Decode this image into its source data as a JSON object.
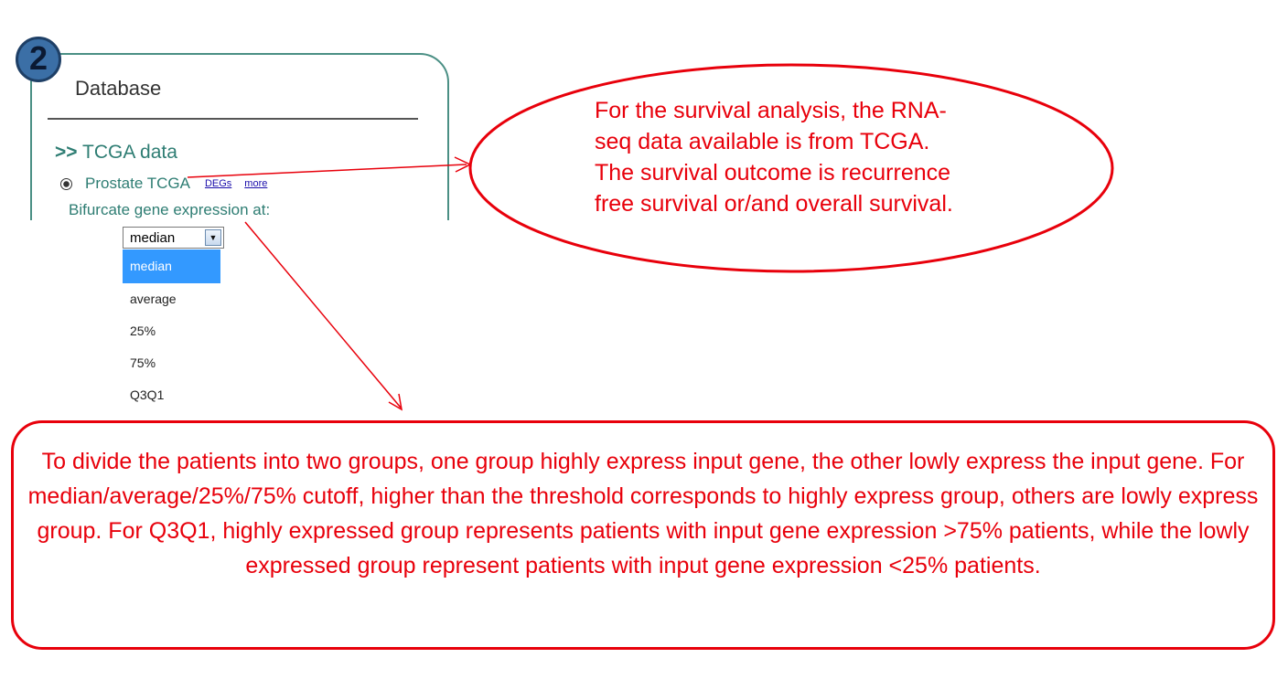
{
  "step_badge": "2",
  "database_panel": {
    "title": "Database",
    "tcga_prefix": ">>",
    "tcga_heading": "TCGA data",
    "dataset_option": "Prostate TCGA",
    "link_degs": "DEGs",
    "link_more": "more",
    "bifurcate_label": "Bifurcate gene expression at:"
  },
  "cutoff_select": {
    "selected_value": "median",
    "options": [
      "median",
      "average",
      "25%",
      "75%",
      "Q3Q1"
    ],
    "highlighted_index": 0
  },
  "annotations": {
    "survival_note": "For the survival analysis, the RNA-seq data available is from TCGA. The survival outcome is recurrence free survival or/and overall survival.",
    "grouping_note": "To divide the patients into two groups, one group highly express input gene, the other lowly express the input gene. For median/average/25%/75% cutoff, higher than the threshold corresponds to highly express group, others are lowly express group. For Q3Q1, highly expressed group represents patients with input gene expression >75% patients, while the lowly expressed group represent patients with input gene expression <25% patients."
  },
  "colors": {
    "annotation_red": "#e8000b",
    "panel_teal": "#4a8f84",
    "text_teal": "#2e7d73",
    "badge_blue": "#3b6fa6",
    "selection_blue": "#3399ff"
  }
}
